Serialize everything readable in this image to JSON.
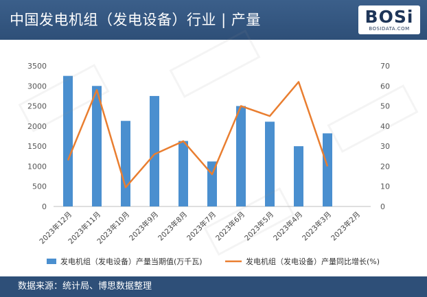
{
  "header": {
    "title": "中国发电机组（发电设备）行业 | 产量",
    "logo_text": "BOSi",
    "logo_sub": "BOSIDATA.COM"
  },
  "footer": {
    "source": "数据来源：统计局、博思数据整理"
  },
  "colors": {
    "bar": "#4a8fcf",
    "line": "#e97e30",
    "header": "#2e4f78"
  },
  "chart_data": {
    "type": "bar",
    "categories": [
      "2023年12月",
      "2023年11月",
      "2023年10月",
      "2023年9月",
      "2023年8月",
      "2023年7月",
      "2023年6月",
      "2023年5月",
      "2023年4月",
      "2023年3月",
      "2023年2月"
    ],
    "series": [
      {
        "name": "发电机组（发电设备）产量当期值(万千瓦)",
        "type": "bar",
        "axis": "left",
        "values": [
          3250,
          3000,
          2130,
          2750,
          1630,
          1120,
          2500,
          2110,
          1500,
          1820,
          null
        ]
      },
      {
        "name": "发电机组（发电设备）产量同比增长(%)",
        "type": "line",
        "axis": "right",
        "values": [
          23,
          58,
          9.5,
          26,
          32.5,
          16,
          50,
          45,
          62,
          20,
          null
        ]
      }
    ],
    "y_left": {
      "min": 0,
      "max": 3500,
      "ticks": [
        0,
        500,
        1000,
        1500,
        2000,
        2500,
        3000,
        3500
      ]
    },
    "y_right": {
      "min": 0,
      "max": 70,
      "ticks": [
        0,
        10,
        20,
        30,
        40,
        50,
        60,
        70
      ]
    },
    "legend_position": "bottom",
    "grid": false
  }
}
